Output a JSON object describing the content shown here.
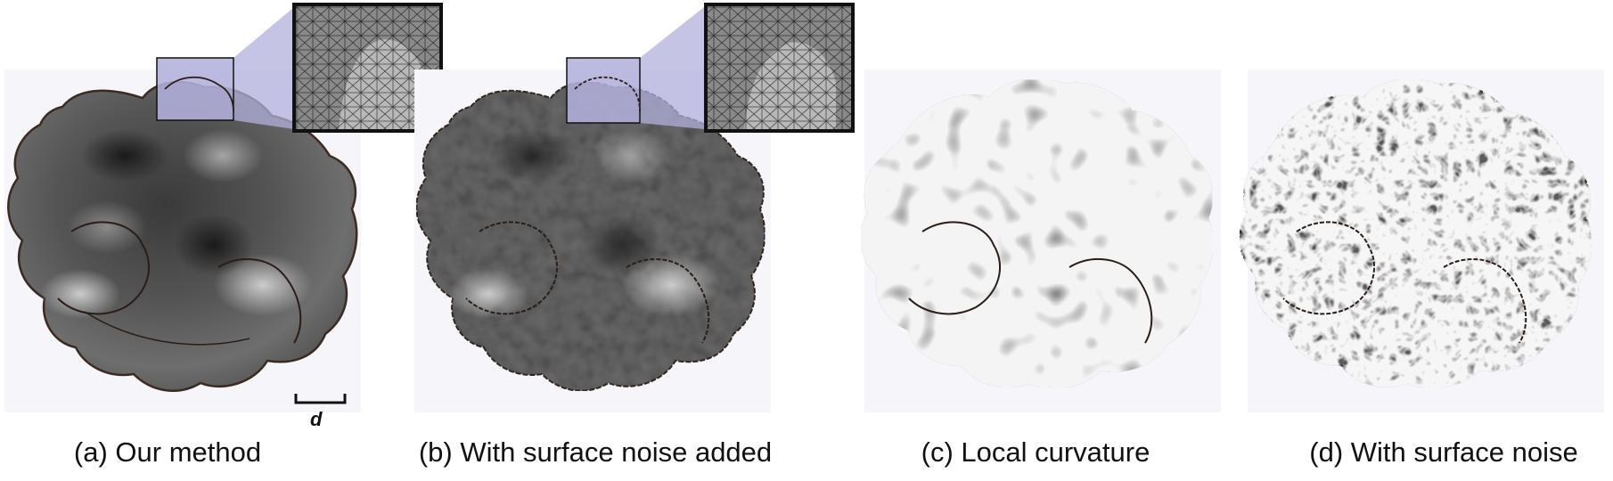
{
  "figure": {
    "panels": [
      {
        "id": "a",
        "caption": "(a) Our method",
        "shading": "smooth",
        "has_inset": true
      },
      {
        "id": "b",
        "caption": "(b) With surface noise added",
        "shading": "noisy",
        "has_inset": true
      },
      {
        "id": "c",
        "caption": "(c) Local curvature",
        "shading": "curvature",
        "has_inset": false
      },
      {
        "id": "d",
        "caption": "(d) With surface noise",
        "shading": "curvature-noisy",
        "has_inset": false
      }
    ],
    "scale_bar_label": "d",
    "colors": {
      "panel_background": "#f6f5fa",
      "inset_fill": "#b3b0dc",
      "outline": "#3a2a22",
      "inset_border": "#111111"
    }
  }
}
